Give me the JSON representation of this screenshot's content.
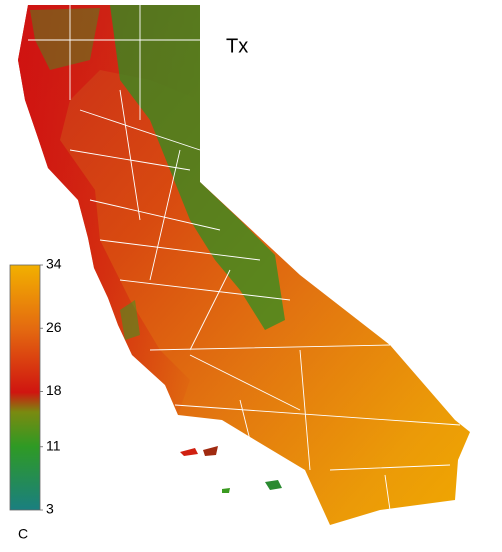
{
  "map": {
    "title": "Tx",
    "colorbar": {
      "lim": [
        3,
        34
      ],
      "ticks": [
        3,
        11,
        18,
        26,
        34
      ],
      "unit": "C"
    }
  }
}
